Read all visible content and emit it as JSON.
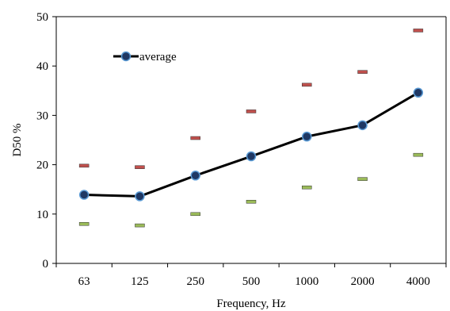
{
  "chart_data": {
    "type": "line",
    "title": "",
    "xlabel": "Frequency, Hz",
    "ylabel": "D50 %",
    "ylim": [
      0,
      50
    ],
    "yticks": [
      0,
      10,
      20,
      30,
      40,
      50
    ],
    "grid": false,
    "legend": {
      "position": "top-left",
      "entries": [
        "average"
      ]
    },
    "categories": [
      "63",
      "125",
      "250",
      "500",
      "1000",
      "2000",
      "4000"
    ],
    "series": [
      {
        "name": "average",
        "style": "line-with-markers",
        "color": "#000000",
        "marker_color": "#1f3864",
        "values": [
          13.9,
          13.6,
          17.8,
          21.7,
          25.7,
          28.0,
          34.6
        ]
      },
      {
        "name": "",
        "style": "dash-markers",
        "color": "#c0504d",
        "values": [
          19.8,
          19.5,
          25.4,
          30.8,
          36.2,
          38.8,
          47.2
        ]
      },
      {
        "name": "",
        "style": "dash-markers",
        "color": "#9bbb59",
        "values": [
          8.0,
          7.7,
          10.0,
          12.5,
          15.4,
          17.1,
          22.0
        ]
      }
    ]
  }
}
